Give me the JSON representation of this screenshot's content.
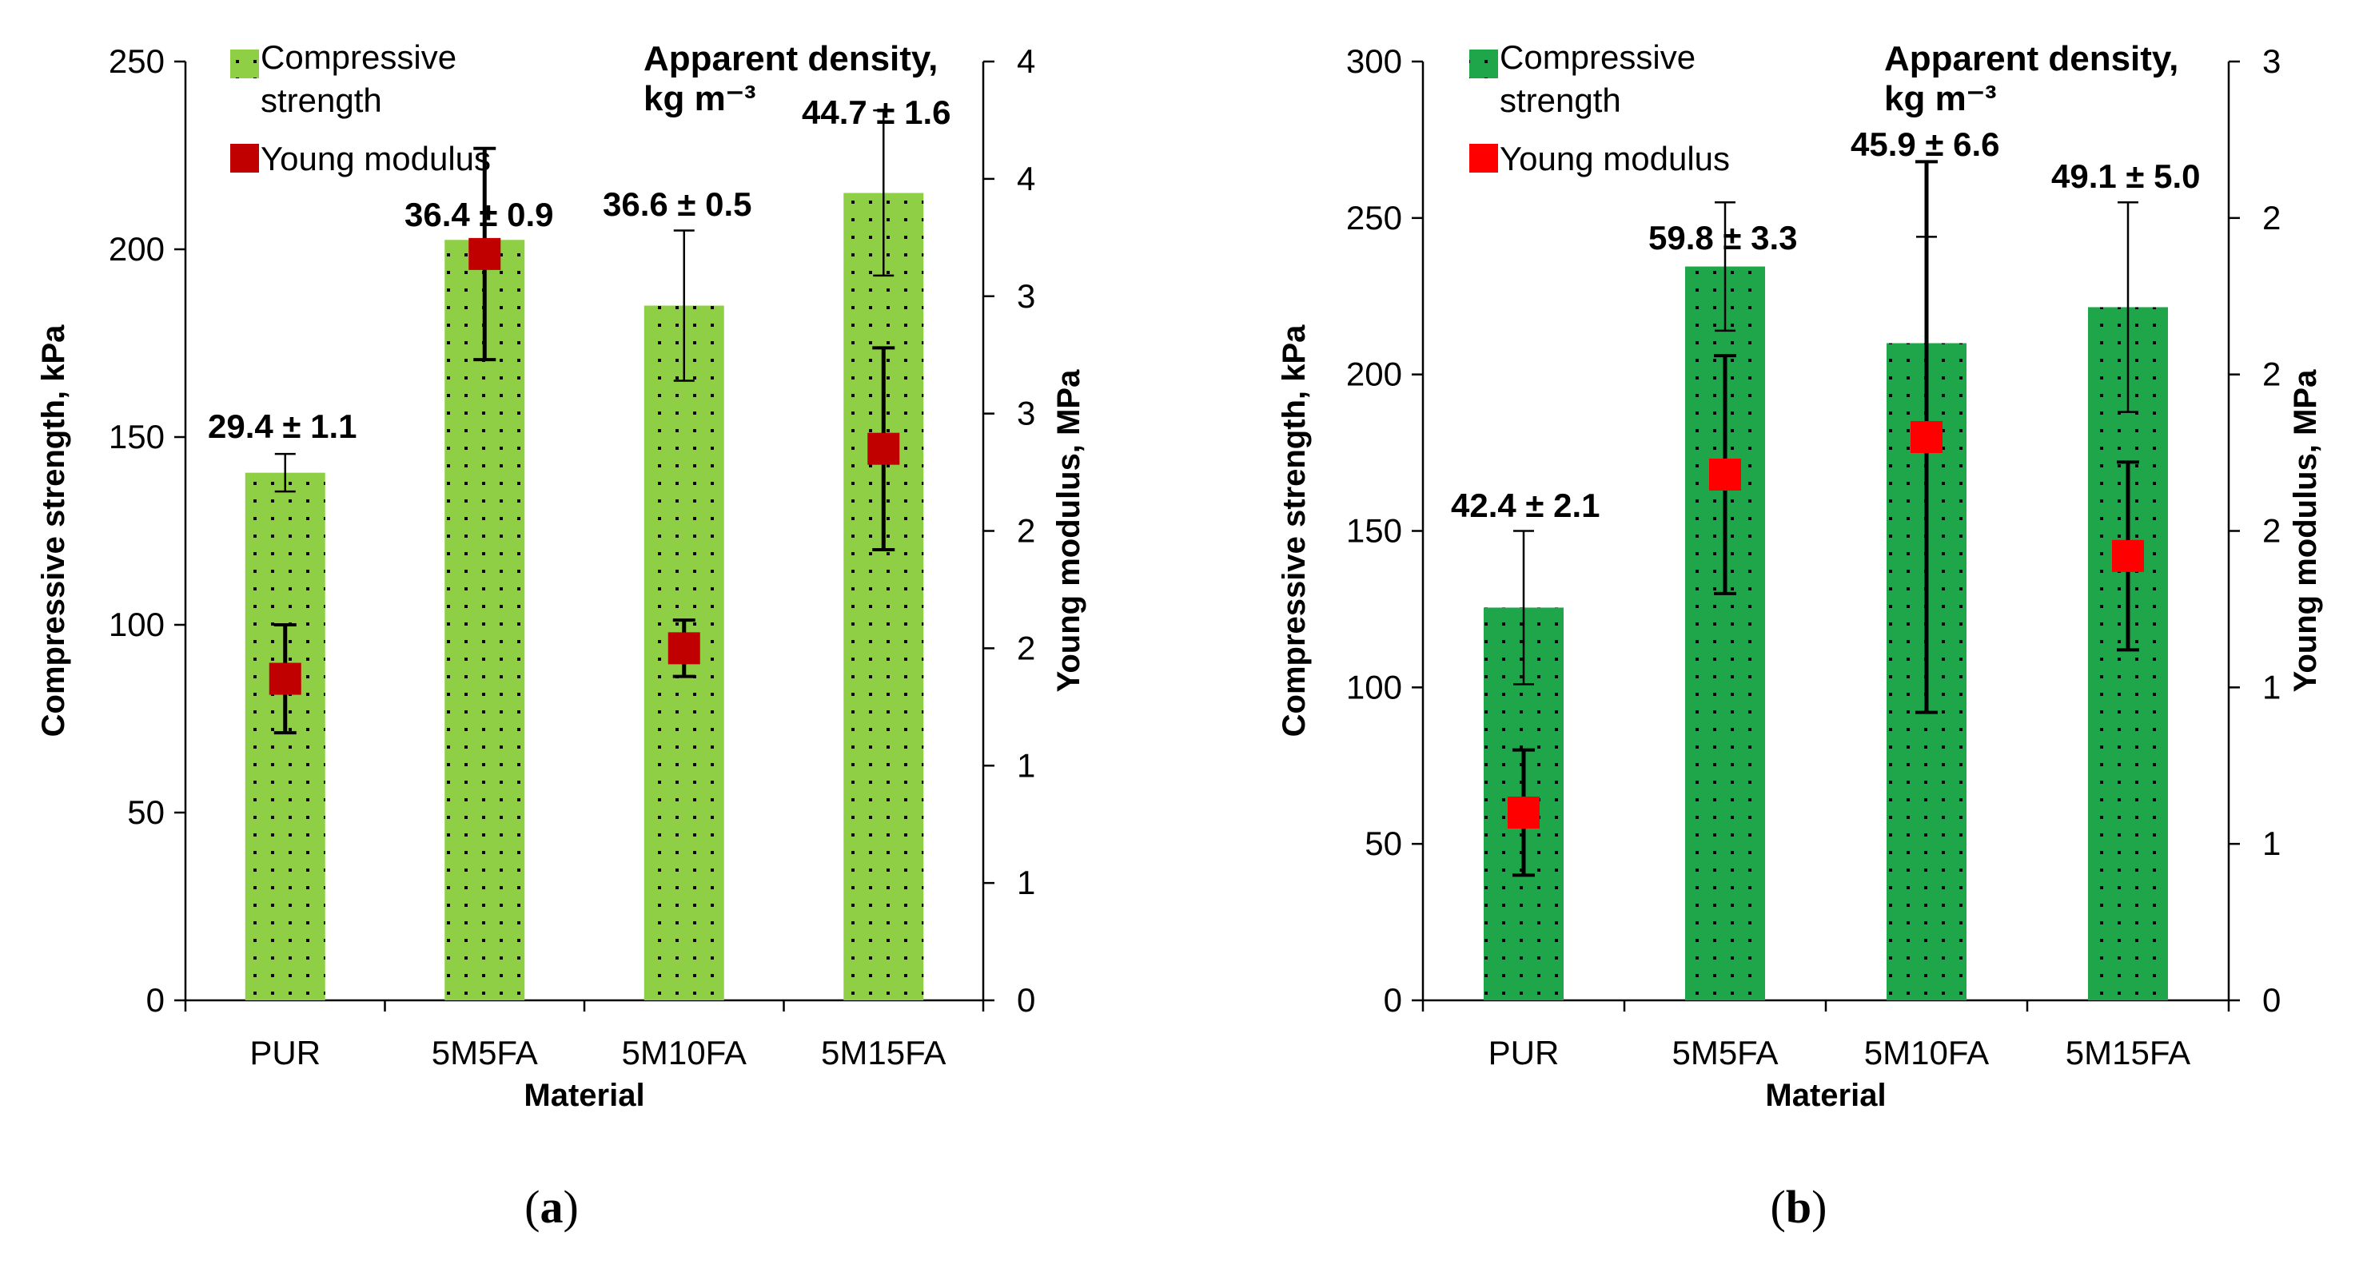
{
  "chart_data": [
    {
      "type": "bar",
      "panel": "a",
      "caption_letter": "a",
      "categories": [
        "PUR",
        "5M5FA",
        "5M10FA",
        "5M15FA"
      ],
      "xlabel": "Material",
      "ylabel": "Compressive strength, kPa",
      "y2label": "Young modulus, MPa",
      "ylim": [
        0,
        250
      ],
      "yticks": [
        0,
        50,
        100,
        150,
        200,
        250
      ],
      "y2lim": [
        0,
        4
      ],
      "y2ticks": [
        0,
        0.5,
        1,
        1.5,
        2,
        2.5,
        3,
        3.5,
        4
      ],
      "y2ticklabels": [
        "0",
        "1",
        "1",
        "2",
        "2",
        "3",
        "3",
        "4",
        "4"
      ],
      "bar_color": "#8fcf45",
      "marker_color": "#c00000",
      "legend": {
        "bar": "Compressive strength",
        "bar_line1": "Compressive",
        "bar_line2": "strength",
        "marker": "Young modulus"
      },
      "density_title_line1": "Apparent density,",
      "density_title_line2": "kg m⁻³",
      "series": [
        {
          "name": "Compressive strength",
          "axis": "left",
          "values": [
            140.5,
            202.5,
            185,
            215
          ],
          "errors": [
            5,
            0,
            20,
            22
          ]
        },
        {
          "name": "Young modulus",
          "axis": "right",
          "values": [
            1.37,
            3.18,
            1.5,
            2.35
          ],
          "errors": [
            0.23,
            0.45,
            0.12,
            0.43
          ]
        }
      ],
      "density_labels": [
        "29.4 ± 1.1",
        "36.4 ± 0.9",
        "36.6 ± 0.5",
        "44.7 ± 1.6"
      ]
    },
    {
      "type": "bar",
      "panel": "b",
      "caption_letter": "b",
      "categories": [
        "PUR",
        "5M5FA",
        "5M10FA",
        "5M15FA"
      ],
      "xlabel": "Material",
      "ylabel": "Compressive strength, kPa",
      "y2label": "Young modulus, MPa",
      "ylim": [
        0,
        300
      ],
      "yticks": [
        0,
        50,
        100,
        150,
        200,
        250,
        300
      ],
      "y2lim": [
        0,
        3
      ],
      "y2ticks": [
        0,
        0.5,
        1,
        1.5,
        2,
        2.5,
        3
      ],
      "y2ticklabels": [
        "0",
        "1",
        "1",
        "2",
        "2",
        "2",
        "3"
      ],
      "bar_color": "#1fa64a",
      "marker_color": "#ff0000",
      "legend": {
        "bar": "Compressive strength",
        "bar_line1": "Compressive",
        "bar_line2": "strength",
        "marker": "Young modulus"
      },
      "density_title_line1": "Apparent density,",
      "density_title_line2": "kg m⁻³",
      "series": [
        {
          "name": "Compressive strength",
          "axis": "left",
          "values": [
            125.5,
            234.5,
            210,
            221.5
          ],
          "errors": [
            24.5,
            20.5,
            34,
            33.5
          ]
        },
        {
          "name": "Young modulus",
          "axis": "right",
          "values": [
            0.6,
            1.68,
            1.8,
            1.42
          ],
          "errors": [
            0.2,
            0.38,
            0.88,
            0.3
          ]
        }
      ],
      "density_labels": [
        "42.4 ± 2.1",
        "59.8 ± 3.3",
        "45.9 ± 6.6",
        "49.1 ± 5.0"
      ]
    }
  ]
}
